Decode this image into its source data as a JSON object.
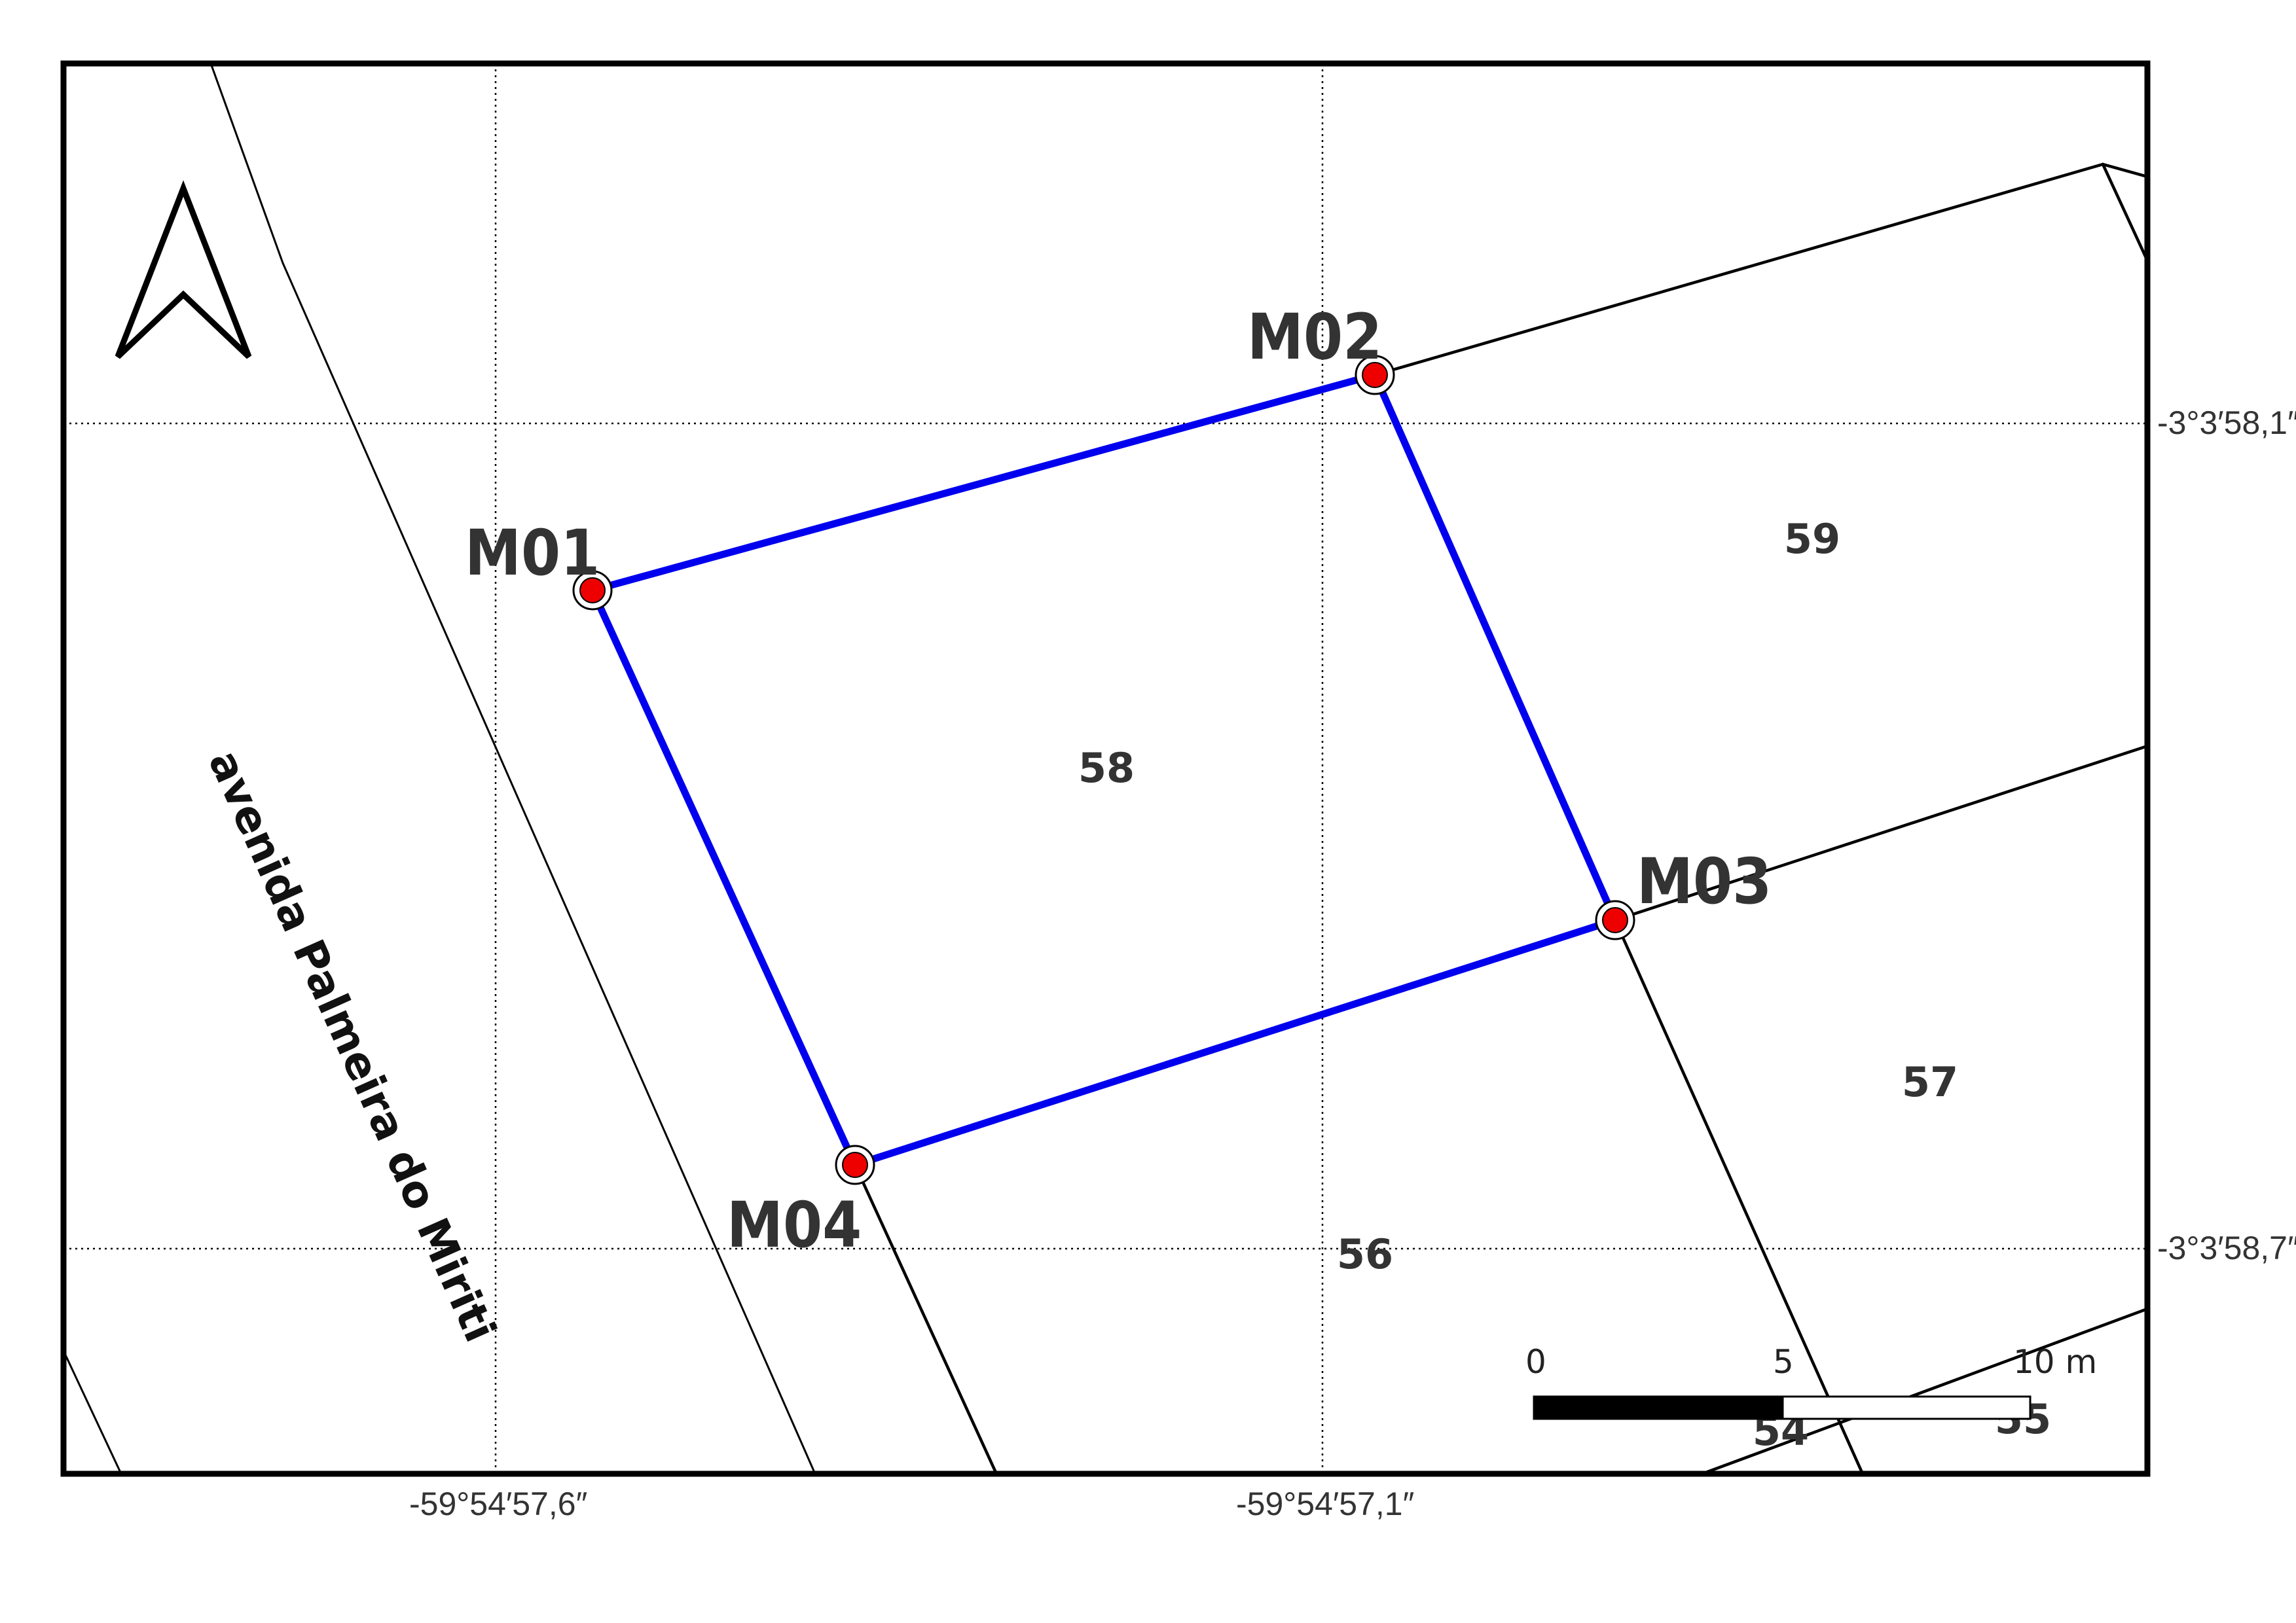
{
  "map": {
    "vertices": [
      {
        "id": "M01",
        "label": "M01"
      },
      {
        "id": "M02",
        "label": "M02"
      },
      {
        "id": "M03",
        "label": "M03"
      },
      {
        "id": "M04",
        "label": "M04"
      }
    ],
    "lots": {
      "l58": "58",
      "l59": "59",
      "l57": "57",
      "l56": "56",
      "l54": "54",
      "l55": "55"
    },
    "street_name": "avenida Palmeira do Miriti",
    "coordinates": {
      "lat_top": "-3°3′58,1″",
      "lat_bottom": "-3°3′58,7″",
      "lon_left": "-59°54′57,6″",
      "lon_right": "-59°54′57,1″"
    },
    "scale_bar": {
      "label_0": "0",
      "label_5": "5",
      "label_10": "10 m"
    },
    "north_arrow_icon": "north-arrow-icon",
    "colors": {
      "lot_boundary": "#0000ee",
      "vertex_marker": "#ee0000"
    }
  }
}
